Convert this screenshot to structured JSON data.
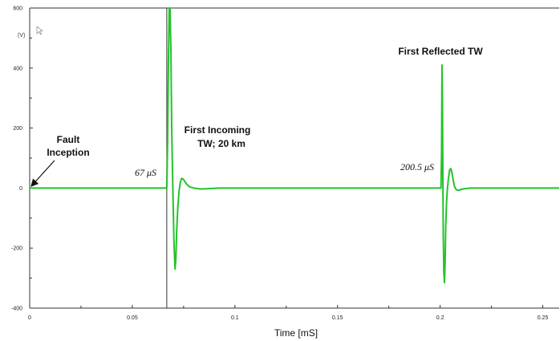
{
  "chart_data": {
    "type": "line",
    "title": "",
    "xlabel": "Time [mS]",
    "ylabel": "(V)",
    "xlim": [
      0,
      0.258
    ],
    "ylim": [
      -400,
      600
    ],
    "x_ticks": [
      0,
      0.05,
      0.1,
      0.15,
      0.2,
      0.25
    ],
    "x_tick_labels": [
      "0",
      "0.05",
      "0.1",
      "0.15",
      "0.2",
      "0.25"
    ],
    "y_ticks": [
      -400,
      -200,
      0,
      200,
      400,
      600
    ],
    "y_tick_labels": [
      "-400",
      "-200",
      "0",
      "200",
      "400",
      "600"
    ],
    "grid": false,
    "series": [
      {
        "color": "#22c32a",
        "x": [
          0,
          0.0668,
          0.0672,
          0.0676,
          0.068,
          0.0684,
          0.0688,
          0.0692,
          0.0698,
          0.0703,
          0.0708,
          0.0712,
          0.0716,
          0.0722,
          0.0728,
          0.0734,
          0.074,
          0.0748,
          0.0756,
          0.0766,
          0.078,
          0.08,
          0.083,
          0.087,
          0.092,
          0.1,
          0.2004,
          0.2007,
          0.2009,
          0.2011,
          0.2013,
          0.2015,
          0.2018,
          0.2021,
          0.2024,
          0.2027,
          0.2031,
          0.2035,
          0.204,
          0.2046,
          0.2052,
          0.2058,
          0.2064,
          0.207,
          0.2078,
          0.2088,
          0.21,
          0.212,
          0.215,
          0.22,
          0.258
        ],
        "y": [
          0,
          0,
          150,
          420,
          600,
          600,
          460,
          200,
          -20,
          -180,
          -270,
          -240,
          -150,
          -60,
          -10,
          20,
          32,
          30,
          22,
          12,
          4,
          0,
          -3,
          -2,
          0,
          0,
          0,
          120,
          410,
          300,
          60,
          -150,
          -280,
          -315,
          -250,
          -130,
          -50,
          -5,
          30,
          60,
          65,
          50,
          25,
          5,
          -5,
          -8,
          -5,
          -2,
          0,
          0,
          0
        ]
      }
    ],
    "markers": [
      {
        "x": 0.0668,
        "label": "67 μS"
      }
    ],
    "annotations": [
      {
        "text_lines": [
          "Fault",
          "Inception"
        ],
        "x": 0,
        "y": 0,
        "arrow": true
      },
      {
        "text_lines": [
          "First Incoming",
          "TW; 20 km"
        ],
        "x": 0.07,
        "y": 150
      },
      {
        "text_lines": [
          "67 μS"
        ],
        "italic": true
      },
      {
        "text_lines": [
          "200.5 μS"
        ],
        "italic": true
      },
      {
        "text_lines": [
          "First Reflected TW"
        ],
        "x": 0.2,
        "y": 450
      }
    ]
  }
}
